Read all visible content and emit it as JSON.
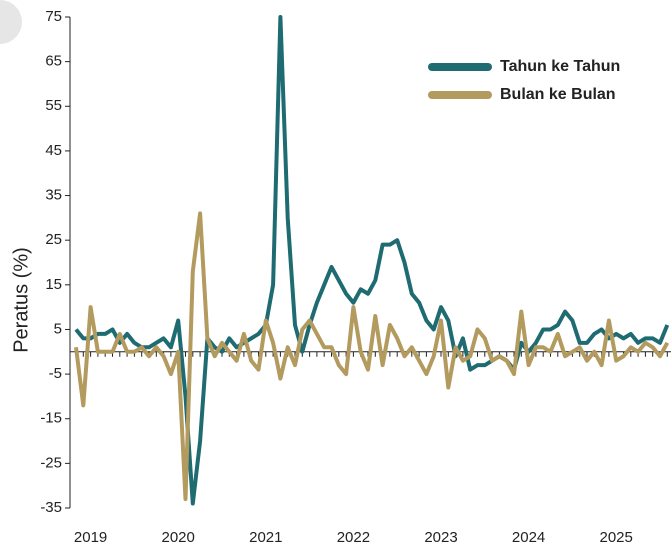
{
  "chart_data": {
    "type": "line",
    "y_label": "Peratus (%)",
    "categories": [
      null,
      null,
      "2019",
      null,
      null,
      null,
      null,
      null,
      null,
      null,
      null,
      null,
      null,
      null,
      "2020",
      null,
      null,
      null,
      null,
      null,
      null,
      null,
      null,
      null,
      null,
      null,
      "2021",
      null,
      null,
      null,
      null,
      null,
      null,
      null,
      null,
      null,
      null,
      null,
      "2022",
      null,
      null,
      null,
      null,
      null,
      null,
      null,
      null,
      null,
      null,
      null,
      "2023",
      null,
      null,
      null,
      null,
      null,
      null,
      null,
      null,
      null,
      null,
      null,
      "2024",
      null,
      null,
      null,
      null,
      null,
      null,
      null,
      null,
      null,
      null,
      null,
      "2025",
      null,
      null,
      null,
      null,
      null,
      null,
      null
    ],
    "series": [
      {
        "name": "Tahun ke Tahun",
        "color": "#1e6b72",
        "values": [
          5,
          3,
          3,
          4,
          4,
          5,
          2,
          4,
          2,
          1,
          1,
          2,
          3,
          1,
          7,
          -10,
          -34,
          -20,
          3,
          1,
          0,
          3,
          1,
          2,
          3,
          4,
          6,
          15,
          75,
          30,
          6,
          0,
          6,
          11,
          15,
          19,
          16,
          13,
          11,
          14,
          13,
          16,
          24,
          24,
          25,
          20,
          13,
          11,
          7,
          5,
          10,
          7,
          -1,
          3,
          -4,
          -3,
          -3,
          -2,
          -1,
          -2,
          -4,
          2,
          0,
          2,
          5,
          5,
          6,
          9,
          7,
          2,
          2,
          4,
          5,
          3,
          4,
          3,
          4,
          2,
          3,
          3,
          2,
          6
        ]
      },
      {
        "name": "Bulan ke Bulan",
        "color": "#b39a5e",
        "values": [
          1,
          -12,
          10,
          0,
          0,
          0,
          4,
          0,
          0,
          1,
          -1,
          1,
          -1,
          -5,
          0,
          -33,
          18,
          31,
          3,
          -1,
          2,
          0,
          -2,
          4,
          -2,
          -4,
          7,
          2,
          -6,
          1,
          -3,
          5,
          7,
          4,
          1,
          1,
          -3,
          -5,
          10,
          0,
          -4,
          8,
          -3,
          6,
          3,
          -1,
          1,
          -2,
          -5,
          -1,
          7,
          -8,
          1,
          -2,
          -1,
          5,
          3,
          -2,
          -1,
          -2,
          -5,
          9,
          -3,
          1,
          1,
          0,
          4,
          -1,
          0,
          1,
          -2,
          0,
          -3,
          7,
          -2,
          -1,
          1,
          0,
          2,
          1,
          -1,
          2
        ]
      }
    ],
    "ylim": [
      -35,
      75
    ],
    "yticks": [
      75,
      65,
      55,
      45,
      35,
      25,
      15,
      5,
      -5,
      -15,
      -25,
      -35
    ],
    "legend": "top-right"
  }
}
